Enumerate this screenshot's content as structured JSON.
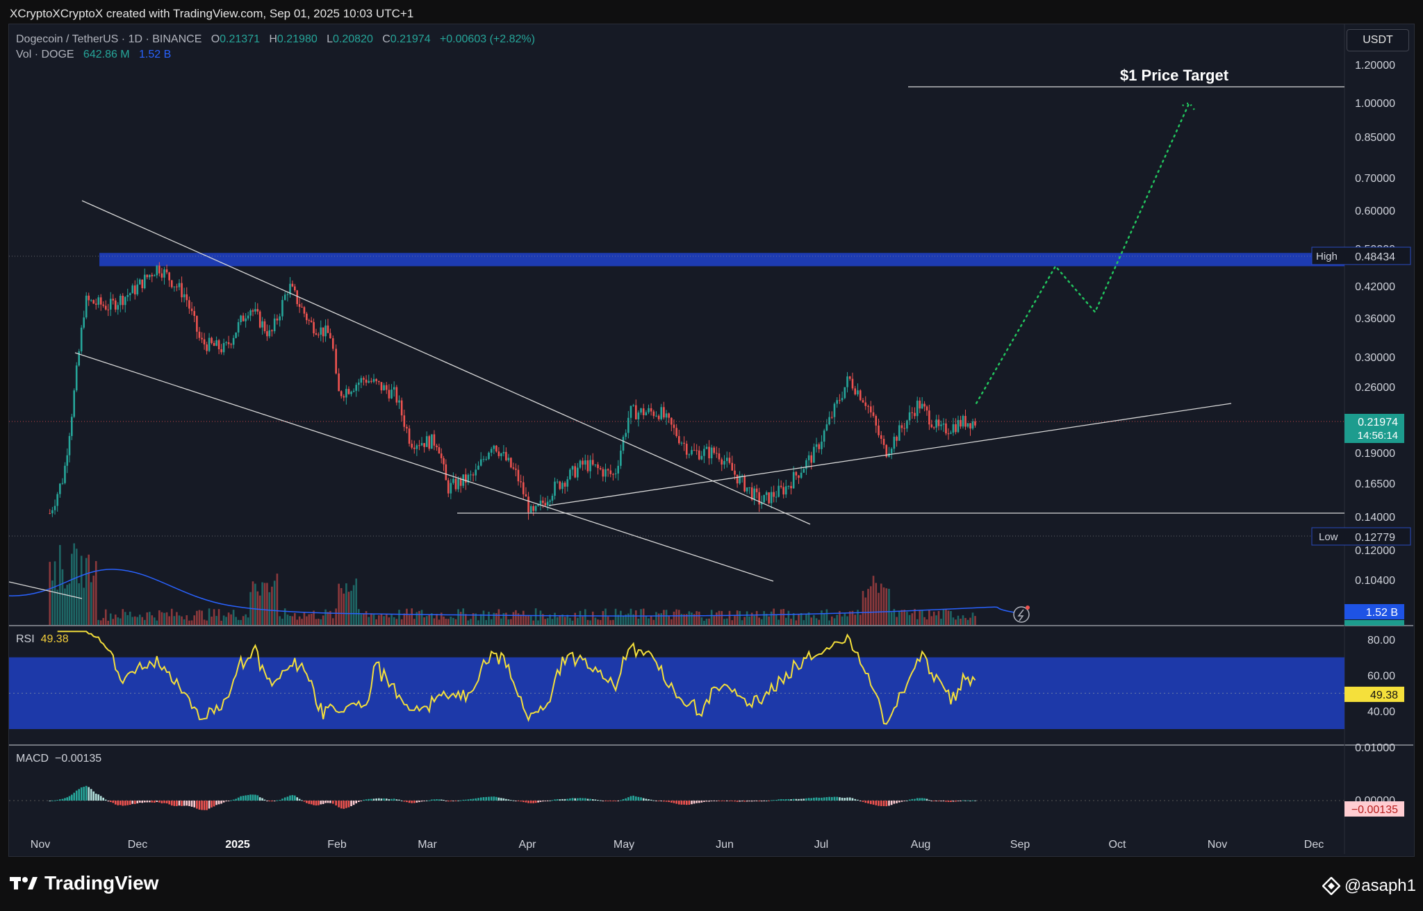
{
  "header": {
    "credit": "XCryptoXCryptoX created with TradingView.com, Sep 01, 2025 10:03 UTC+1"
  },
  "legend": {
    "symbol": "Dogecoin / TetherUS · 1D · BINANCE",
    "o_label": "O",
    "o": "0.21371",
    "h_label": "H",
    "h": "0.21980",
    "l_label": "L",
    "l": "0.20820",
    "c_label": "C",
    "c": "0.21974",
    "change": "+0.00603 (+2.82%)",
    "vol_label": "Vol · DOGE",
    "vol_1": "642.86 M",
    "vol_2": "1.52 B"
  },
  "currency_button": "USDT",
  "annotation_target": "$1 Price Target",
  "price_axis": {
    "ticks": [
      "1.20000",
      "1.00000",
      "0.85000",
      "0.70000",
      "0.60000",
      "0.50000",
      "0.42000",
      "0.36000",
      "0.30000",
      "0.26000",
      "0.19000",
      "0.16500",
      "0.14000",
      "0.12000",
      "0.10400"
    ],
    "high_label": "High",
    "high_value": "0.48434",
    "low_label": "Low",
    "low_value": "0.12779",
    "current_price": "0.21974",
    "countdown": "14:56:14",
    "volume_badge": "1.52 B"
  },
  "rsi": {
    "label": "RSI",
    "value": "49.38",
    "ticks": [
      "80.00",
      "60.00",
      "40.00"
    ]
  },
  "macd": {
    "label": "MACD",
    "value": "−0.00135",
    "ticks": [
      "0.01000",
      "0.00000"
    ],
    "badge": "−0.00135"
  },
  "time_axis": [
    "Nov",
    "Dec",
    "2025",
    "Feb",
    "Mar",
    "Apr",
    "May",
    "Jun",
    "Jul",
    "Aug",
    "Sep",
    "Oct",
    "Nov",
    "Dec"
  ],
  "footer": {
    "brand": "TradingView",
    "handle": "@asaph1"
  },
  "colors": {
    "up": "#26a69a",
    "down": "#ef5350",
    "band": "#1e3db8",
    "rsi_line": "#f5e03b",
    "projection": "#22c55e"
  },
  "chart_data": {
    "type": "candlestick",
    "title": "Dogecoin / TetherUS · 1D · BINANCE",
    "y_scale": "log",
    "ylim": [
      0.095,
      1.25
    ],
    "x_labels": [
      "Nov",
      "Dec",
      "2025",
      "Feb",
      "Mar",
      "Apr",
      "May",
      "Jun",
      "Jul",
      "Aug",
      "Sep",
      "Oct",
      "Nov",
      "Dec"
    ],
    "close_path": [
      {
        "date": "2024-10-31",
        "close": 0.14
      },
      {
        "date": "2024-11-05",
        "close": 0.17
      },
      {
        "date": "2024-11-08",
        "close": 0.24
      },
      {
        "date": "2024-11-12",
        "close": 0.39
      },
      {
        "date": "2024-11-20",
        "close": 0.38
      },
      {
        "date": "2024-11-28",
        "close": 0.41
      },
      {
        "date": "2024-12-06",
        "close": 0.46
      },
      {
        "date": "2024-12-15",
        "close": 0.4
      },
      {
        "date": "2024-12-20",
        "close": 0.32
      },
      {
        "date": "2024-12-28",
        "close": 0.31
      },
      {
        "date": "2025-01-05",
        "close": 0.38
      },
      {
        "date": "2025-01-12",
        "close": 0.33
      },
      {
        "date": "2025-01-18",
        "close": 0.42
      },
      {
        "date": "2025-01-25",
        "close": 0.35
      },
      {
        "date": "2025-02-01",
        "close": 0.33
      },
      {
        "date": "2025-02-03",
        "close": 0.25
      },
      {
        "date": "2025-02-12",
        "close": 0.27
      },
      {
        "date": "2025-02-22",
        "close": 0.25
      },
      {
        "date": "2025-02-27",
        "close": 0.2
      },
      {
        "date": "2025-03-08",
        "close": 0.2
      },
      {
        "date": "2025-03-11",
        "close": 0.16
      },
      {
        "date": "2025-03-20",
        "close": 0.17
      },
      {
        "date": "2025-03-26",
        "close": 0.2
      },
      {
        "date": "2025-04-03",
        "close": 0.17
      },
      {
        "date": "2025-04-08",
        "close": 0.14
      },
      {
        "date": "2025-04-15",
        "close": 0.16
      },
      {
        "date": "2025-04-25",
        "close": 0.18
      },
      {
        "date": "2025-05-05",
        "close": 0.17
      },
      {
        "date": "2025-05-10",
        "close": 0.23
      },
      {
        "date": "2025-05-20",
        "close": 0.23
      },
      {
        "date": "2025-05-30",
        "close": 0.19
      },
      {
        "date": "2025-06-08",
        "close": 0.19
      },
      {
        "date": "2025-06-14",
        "close": 0.17
      },
      {
        "date": "2025-06-22",
        "close": 0.15
      },
      {
        "date": "2025-06-30",
        "close": 0.16
      },
      {
        "date": "2025-07-10",
        "close": 0.19
      },
      {
        "date": "2025-07-21",
        "close": 0.27
      },
      {
        "date": "2025-07-27",
        "close": 0.24
      },
      {
        "date": "2025-08-02",
        "close": 0.19
      },
      {
        "date": "2025-08-13",
        "close": 0.24
      },
      {
        "date": "2025-08-20",
        "close": 0.21
      },
      {
        "date": "2025-08-28",
        "close": 0.22
      },
      {
        "date": "2025-09-01",
        "close": 0.21974
      }
    ],
    "projection": [
      {
        "date": "2025-09-01",
        "price": 0.24
      },
      {
        "date": "2025-09-27",
        "price": 0.46
      },
      {
        "date": "2025-10-10",
        "price": 0.37
      },
      {
        "date": "2025-11-10",
        "price": 1.0
      }
    ],
    "resistance_zone": [
      0.46,
      0.49
    ],
    "support_level": 0.145,
    "high": 0.48434,
    "low": 0.12779,
    "rsi_last": 49.38,
    "macd_last": -0.00135
  }
}
